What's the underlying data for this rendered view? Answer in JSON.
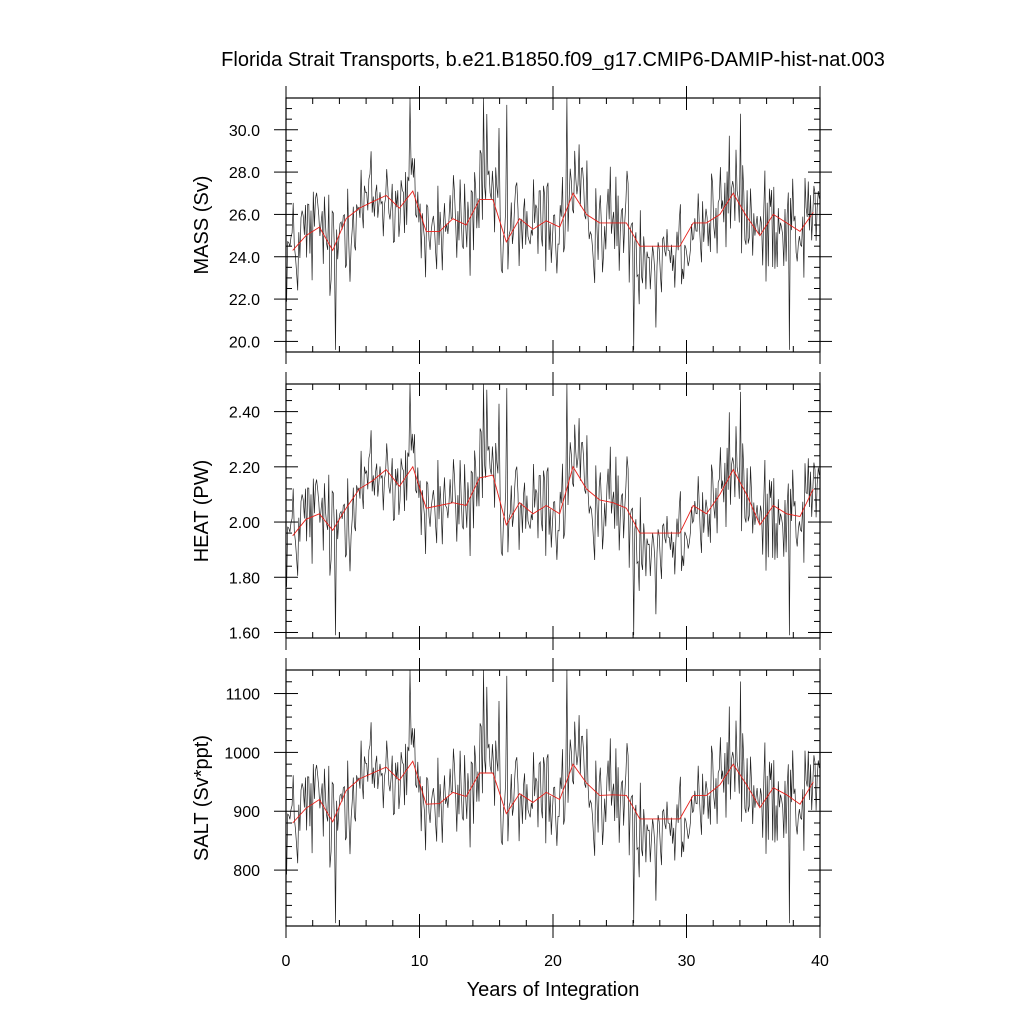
{
  "chart_data": {
    "type": "line",
    "title": "Florida Strait Transports, b.e21.B1850.f09_g17.CMIP6-DAMIP-hist-nat.003",
    "xlabel": "Years of Integration",
    "xlim": [
      0,
      40
    ],
    "xticks": [
      0,
      10,
      20,
      30,
      40
    ],
    "xtick_labels": [
      "0",
      "10",
      "20",
      "30",
      "40"
    ],
    "panels": [
      {
        "ylabel": "MASS (Sv)",
        "ylim": [
          19.5,
          31.5
        ],
        "yticks": [
          20.0,
          22.0,
          24.0,
          26.0,
          28.0,
          30.0
        ],
        "ytick_labels": [
          "20.0",
          "22.0",
          "24.0",
          "26.0",
          "28.0",
          "30.0"
        ],
        "ymin_minor": 0.5,
        "mean_values": [
          24.3,
          25.0,
          25.4,
          24.3,
          25.8,
          26.3,
          26.6,
          26.9,
          26.3,
          27.1,
          25.2,
          25.2,
          25.8,
          25.5,
          26.7,
          26.7,
          24.7,
          25.8,
          25.3,
          25.7,
          25.4,
          27.0,
          26.0,
          25.6,
          25.6,
          25.6,
          24.5,
          24.5,
          24.5,
          24.5,
          25.6,
          25.6,
          26.0,
          27.0,
          25.9,
          25.0,
          26.0,
          25.6,
          25.2,
          26.1
        ],
        "min_value": 19.6,
        "max_value": 31.5
      },
      {
        "ylabel": "HEAT (PW)",
        "ylim": [
          1.58,
          2.5
        ],
        "yticks": [
          1.6,
          1.8,
          2.0,
          2.2,
          2.4
        ],
        "ytick_labels": [
          "1.60",
          "1.80",
          "2.00",
          "2.20",
          "2.40"
        ],
        "ymin_minor": 0.04,
        "mean_values": [
          1.95,
          2.01,
          2.03,
          1.97,
          2.05,
          2.12,
          2.15,
          2.19,
          2.13,
          2.2,
          2.05,
          2.06,
          2.07,
          2.06,
          2.16,
          2.17,
          1.99,
          2.07,
          2.03,
          2.06,
          2.03,
          2.2,
          2.12,
          2.08,
          2.07,
          2.05,
          1.96,
          1.96,
          1.96,
          1.96,
          2.06,
          2.03,
          2.1,
          2.19,
          2.1,
          1.99,
          2.06,
          2.03,
          2.02,
          2.12
        ],
        "min_value": 1.59,
        "max_value": 2.5
      },
      {
        "ylabel": "SALT (Sv*ppt)",
        "ylim": [
          705,
          1140
        ],
        "yticks": [
          800,
          900,
          1000,
          1100
        ],
        "ytick_labels": [
          "800",
          "900",
          "1000",
          "1100"
        ],
        "ymin_minor": 20,
        "mean_values": [
          880,
          905,
          920,
          882,
          935,
          955,
          965,
          975,
          953,
          985,
          912,
          913,
          932,
          925,
          965,
          965,
          896,
          930,
          915,
          932,
          920,
          980,
          948,
          927,
          928,
          927,
          887,
          887,
          887,
          887,
          927,
          927,
          945,
          980,
          945,
          906,
          940,
          928,
          912,
          950
        ],
        "min_value": 710,
        "max_value": 1140
      }
    ]
  }
}
